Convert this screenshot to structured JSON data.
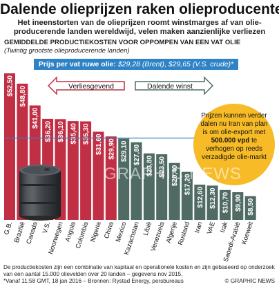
{
  "header": {
    "title": "Dalende olieprijzen raken olieproducenten",
    "subtitle": "Het ineenstorten van de olieprijzen roomt winstmarges af van olie-producerende landen wereldwijd, velen maken aanzienlijke verliezen",
    "section_title": "GEMIDDELDE PRODUCTIEKOSTEN VOOR OPPOMPEN VAN EEN VAT OLIE",
    "section_subtitle": "(Twintig grootste olieproducerende landen)"
  },
  "price_box": {
    "label": "Prijs per vat ruwe olie:",
    "brent": "$29,28 (Brent)",
    "separator": ",",
    "us": "$29,65 (V.S. crude)*"
  },
  "arrows": {
    "loss": "Verliesgevend",
    "profit": "Dalende winst"
  },
  "callout": {
    "part1": "Prijzen kunnen verder dalen nu Iran van plan is om olie-export met",
    "bold": "500.000 vpd",
    "part2": "te verhogen op reeds verzadigde olie-markt"
  },
  "watermark": "GRAPHIC NEWS",
  "footnote": {
    "line1": "De productiekosten zijn een combinatie van kapitaal en operationele kosten en zijn gebaseerd op onderzoek van een aantal 15.000 olievelden over 20 landen – gegevens nov 2015,",
    "line2": "*Vanaf 11:58 GMT, 18 jan 2016 – Bronnen: Rystad Energy, persbureaus",
    "credit": "© GRAPHIC NEWS"
  },
  "colors": {
    "loss_bars": "#c12f45",
    "profit_bars": "#4f6b63",
    "price_box": "#2d83c6",
    "callout": "#f6bb26",
    "arrow_loss": "#c12f45",
    "arrow_profit": "#4f6b63"
  },
  "chart_data": {
    "type": "bar",
    "title": "GEMIDDELDE PRODUCTIEKOSTEN VOOR OPPOMPEN VAN EEN VAT OLIE",
    "xlabel": "",
    "ylabel": "",
    "reference_prices": [
      29.28,
      29.65
    ],
    "ylim": [
      0,
      55
    ],
    "bars": [
      {
        "category": "G.B.",
        "value": 52.5,
        "label": "$52,50",
        "group": "loss"
      },
      {
        "category": "Brazilië",
        "value": 48.8,
        "label": "$48,80",
        "group": "loss"
      },
      {
        "category": "Canada",
        "value": 41.0,
        "label": "$41,00",
        "group": "loss"
      },
      {
        "category": "V.S.",
        "value": 36.2,
        "label": "$36,20",
        "group": "loss"
      },
      {
        "category": "Noorwegen",
        "value": 36.1,
        "label": "$36,10",
        "group": "loss"
      },
      {
        "category": "Angola",
        "value": 35.4,
        "label": "$35,40",
        "group": "loss"
      },
      {
        "category": "Colombia",
        "value": 35.3,
        "label": "$35,30",
        "group": "loss"
      },
      {
        "category": "Nigeria",
        "value": 31.6,
        "label": "$31,60",
        "group": "loss"
      },
      {
        "category": "China",
        "value": 29.9,
        "label": "$29,90",
        "group": "loss"
      },
      {
        "category": "Mexico",
        "value": 29.1,
        "label": "$29,10",
        "group": "profit"
      },
      {
        "category": "Kazachstan",
        "value": 27.8,
        "label": "$27,80",
        "group": "profit"
      },
      {
        "category": "Libië",
        "value": 23.8,
        "label": "$23,80",
        "group": "profit"
      },
      {
        "category": "Venezuela",
        "value": 23.5,
        "label": "$23,50",
        "group": "profit"
      },
      {
        "category": "Algerije",
        "value": 20.4,
        "label": "$20,40",
        "group": "profit"
      },
      {
        "category": "Rusland",
        "value": 17.2,
        "label": "$17,20",
        "group": "profit"
      },
      {
        "category": "Iran",
        "value": 12.6,
        "label": "$12,60",
        "group": "profit"
      },
      {
        "category": "VAE",
        "value": 12.3,
        "label": "$12,30",
        "group": "profit"
      },
      {
        "category": "Irak",
        "value": 10.7,
        "label": "$10,70",
        "group": "profit"
      },
      {
        "category": "Saoedi-Arabië",
        "value": 9.9,
        "label": "$9,90",
        "group": "profit"
      },
      {
        "category": "Koeweit",
        "value": 8.5,
        "label": "$8,50",
        "group": "profit"
      }
    ]
  }
}
